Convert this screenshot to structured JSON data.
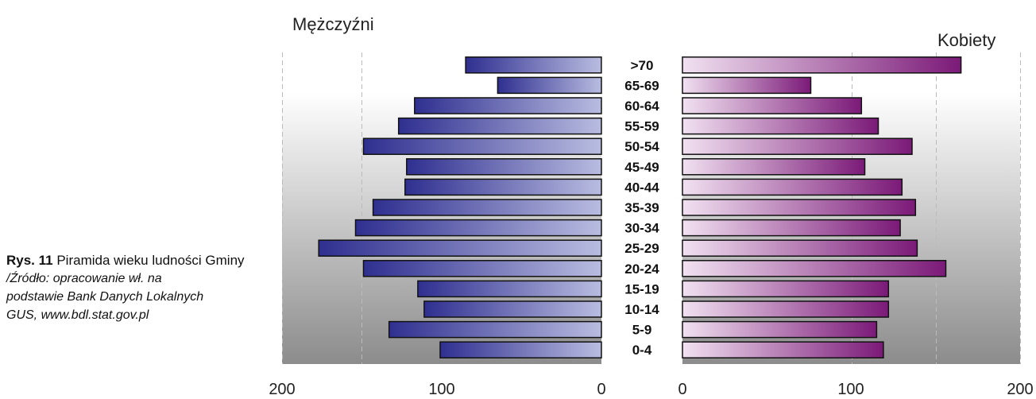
{
  "caption": {
    "figure_label": "Rys.  11",
    "figure_title": "Piramida wieku ludności Gminy",
    "source_line1": "/Źródło: opracowanie wł. na",
    "source_line2": "podstawie Bank Danych Lokalnych",
    "source_line3": "GUS, www.bdl.stat.gov.pl"
  },
  "chart_data": {
    "type": "bar",
    "subtype": "population-pyramid",
    "categories": [
      ">70",
      "65-69",
      "60-64",
      "55-59",
      "50-54",
      "45-49",
      "40-44",
      "35-39",
      "30-34",
      "25-29",
      "20-24",
      "15-19",
      "10-14",
      "5-9",
      "0-4"
    ],
    "series": [
      {
        "name": "Mężczyźni",
        "side": "left",
        "values": [
          85,
          65,
          117,
          127,
          149,
          122,
          123,
          143,
          154,
          177,
          149,
          115,
          111,
          133,
          101
        ]
      },
      {
        "name": "Kobiety",
        "side": "right",
        "values": [
          165,
          76,
          106,
          116,
          136,
          108,
          130,
          138,
          129,
          139,
          156,
          122,
          122,
          115,
          119
        ]
      }
    ],
    "xlim": [
      0,
      200
    ],
    "ticks": [
      "0",
      "100",
      "200"
    ],
    "grid": "vertical-dashed",
    "colors": {
      "male_dark": "#2f2f90",
      "male_light": "#b9bce0",
      "female_light": "#f1e1f1",
      "female_dark": "#7b1a78",
      "background_top": "#ffffff",
      "background_bottom": "#8c8c8c"
    }
  }
}
